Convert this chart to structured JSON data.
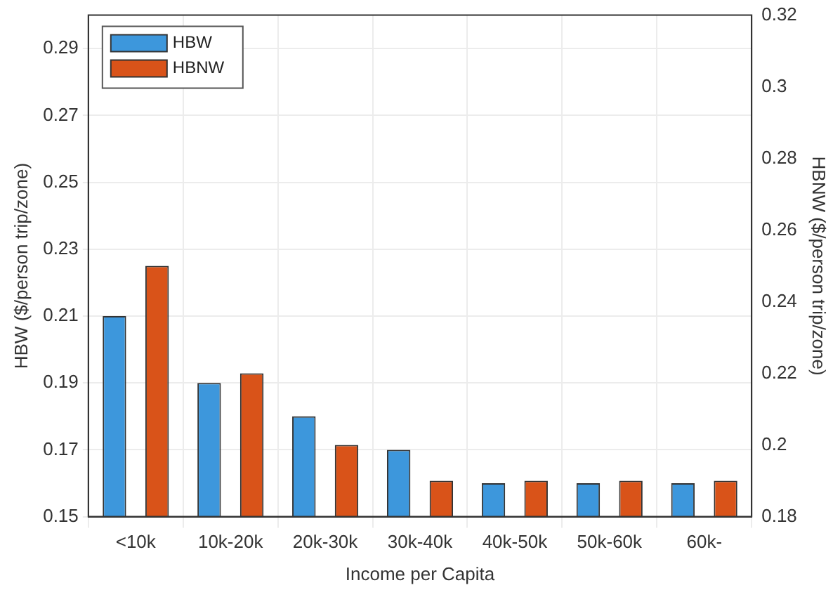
{
  "chart_data": {
    "type": "bar",
    "xlabel": "Income per Capita",
    "ylabel": "HBW ($/person trip/zone)",
    "y2label": "HBNW ($/person trip/zone)",
    "categories": [
      "<10k",
      "10k-20k",
      "20k-30k",
      "30k-40k",
      "40k-50k",
      "50k-60k",
      "60k-"
    ],
    "series": [
      {
        "name": "HBW",
        "color": "#3d97dc",
        "values": [
          0.21,
          0.19,
          0.18,
          0.17,
          0.16,
          0.16,
          0.16
        ]
      },
      {
        "name": "HBNW",
        "color": "#d95319",
        "axis": "y2",
        "values": [
          0.25,
          0.22,
          0.2,
          0.19,
          0.19,
          0.19,
          0.19
        ]
      }
    ],
    "ylim": [
      0.15,
      0.3
    ],
    "yticks": [
      0.15,
      0.17,
      0.19,
      0.21,
      0.23,
      0.25,
      0.27,
      0.29
    ],
    "y2lim": [
      0.18,
      0.32
    ],
    "y2ticks": [
      {
        "value": 0.18,
        "label": "0.18"
      },
      {
        "value": 0.2,
        "label": "0.2"
      },
      {
        "value": 0.22,
        "label": "0.22"
      },
      {
        "value": 0.24,
        "label": "0.24"
      },
      {
        "value": 0.26,
        "label": "0.26"
      },
      {
        "value": 0.28,
        "label": "0.28"
      },
      {
        "value": 0.3,
        "label": "0.3"
      },
      {
        "value": 0.32,
        "label": "0.32"
      }
    ],
    "grid": true,
    "legend": "top left"
  }
}
